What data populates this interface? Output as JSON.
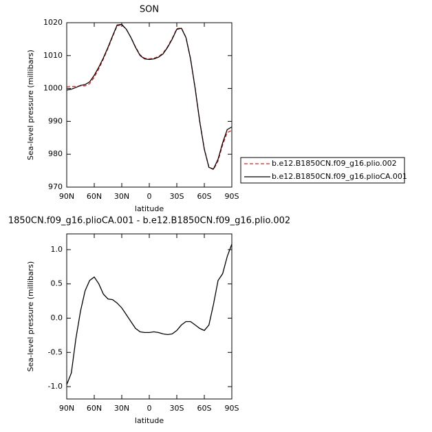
{
  "chart_data": [
    {
      "type": "line",
      "title": "SON",
      "xlabel": "latitude",
      "ylabel": "Sea-level pressure (millibars)",
      "x": [
        90,
        85,
        80,
        75,
        70,
        65,
        60,
        55,
        50,
        45,
        40,
        35,
        30,
        25,
        20,
        15,
        10,
        5,
        0,
        -5,
        -10,
        -15,
        -20,
        -25,
        -30,
        -35,
        -40,
        -45,
        -50,
        -55,
        -60,
        -65,
        -70,
        -75,
        -80,
        -85,
        -90
      ],
      "xlim": [
        90,
        -90
      ],
      "xticks": [
        {
          "value": 90,
          "label": "90N"
        },
        {
          "value": 60,
          "label": "60N"
        },
        {
          "value": 30,
          "label": "30N"
        },
        0,
        {
          "value": -30,
          "label": "30S"
        },
        {
          "value": -60,
          "label": "60S"
        },
        {
          "value": -90,
          "label": "90S"
        }
      ],
      "ylim": [
        970,
        1020
      ],
      "yticks": [
        970,
        980,
        990,
        1000,
        1010,
        1020
      ],
      "legend": "right",
      "series": [
        {
          "name": "b.e12.B1850CN.f09_g16.plio.002",
          "color": "#e0201b",
          "dash": true,
          "values": [
            1000.47,
            1000.6,
            1000.6,
            1000.8,
            1000.8,
            1001.45,
            1003.4,
            1006.0,
            1008.95,
            1012.22,
            1015.73,
            1019.08,
            1019.35,
            1017.95,
            1015.55,
            1012.65,
            1010.2,
            1009.21,
            1009.01,
            1009.2,
            1009.71,
            1010.73,
            1012.74,
            1015.23,
            1018.18,
            1018.4,
            1015.55,
            1009.05,
            1000.1,
            990.15,
            981.68,
            976.1,
            975.3,
            977.95,
            982.85,
            986.6,
            987.22
          ]
        },
        {
          "name": "b.e12.B1850CN.f09_g16.plioCA.001",
          "color": "#000000",
          "dash": false,
          "values": [
            999.5,
            999.8,
            1000.3,
            1000.9,
            1001.2,
            1002,
            1004,
            1006.5,
            1009.3,
            1012.5,
            1016,
            1019.3,
            1019.5,
            1018,
            1015.5,
            1012.5,
            1010,
            1009,
            1008.8,
            1009,
            1009.5,
            1010.5,
            1012.5,
            1015,
            1018,
            1018.3,
            1015.5,
            1009,
            1000,
            990,
            981.5,
            976,
            975.5,
            978.5,
            983.5,
            987.5,
            988.3
          ]
        }
      ]
    },
    {
      "type": "line",
      "title": "1850CN.f09_g16.plioCA.001 - b.e12.B1850CN.f09_g16.plio.002",
      "xlabel": "latitude",
      "ylabel": "Sea-level pressure (millibars)",
      "x": [
        90,
        85,
        80,
        75,
        70,
        65,
        60,
        55,
        50,
        45,
        40,
        35,
        30,
        25,
        20,
        15,
        10,
        5,
        0,
        -5,
        -10,
        -15,
        -20,
        -25,
        -30,
        -35,
        -40,
        -45,
        -50,
        -55,
        -60,
        -65,
        -70,
        -75,
        -80,
        -85,
        -90
      ],
      "xlim": [
        90,
        -90
      ],
      "xticks": [
        {
          "value": 90,
          "label": "90N"
        },
        {
          "value": 60,
          "label": "60N"
        },
        {
          "value": 30,
          "label": "30N"
        },
        0,
        {
          "value": -30,
          "label": "30S"
        },
        {
          "value": -60,
          "label": "60S"
        },
        {
          "value": -90,
          "label": "90S"
        }
      ],
      "ylim": [
        -1.18,
        1.23
      ],
      "yticks": [
        {
          "value": -1,
          "label": "-1.0"
        },
        -0.5,
        {
          "value": 0,
          "label": "0.0"
        },
        0.5,
        {
          "value": 1,
          "label": "1.0"
        }
      ],
      "series": [
        {
          "color": "#000000",
          "values": [
            -0.97,
            -0.8,
            -0.3,
            0.1,
            0.4,
            0.55,
            0.6,
            0.5,
            0.35,
            0.28,
            0.27,
            0.22,
            0.15,
            0.05,
            -0.05,
            -0.15,
            -0.2,
            -0.21,
            -0.21,
            -0.2,
            -0.21,
            -0.23,
            -0.24,
            -0.23,
            -0.18,
            -0.1,
            -0.05,
            -0.05,
            -0.1,
            -0.15,
            -0.18,
            -0.1,
            0.2,
            0.55,
            0.65,
            0.9,
            1.08
          ]
        }
      ]
    }
  ]
}
